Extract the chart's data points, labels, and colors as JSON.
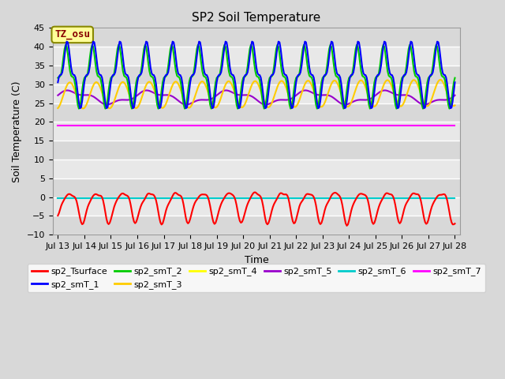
{
  "title": "SP2 Soil Temperature",
  "xlabel": "Time",
  "ylabel": "Soil Temperature (C)",
  "ylim": [
    -10,
    45
  ],
  "yticks": [
    -10,
    -5,
    0,
    5,
    10,
    15,
    20,
    25,
    30,
    35,
    40,
    45
  ],
  "colors": {
    "sp2_Tsurface": "#ff0000",
    "sp2_smT_1": "#0000ff",
    "sp2_smT_2": "#00cc00",
    "sp2_smT_3": "#ffcc00",
    "sp2_smT_4": "#ffff00",
    "sp2_smT_5": "#9900cc",
    "sp2_smT_6": "#00cccc",
    "sp2_smT_7": "#ff00ff"
  },
  "tz_label": "TZ_osu",
  "tz_color": "#880000",
  "tz_bg": "#ffff99",
  "background_color": "#d8d8d8",
  "plot_bg": "#e8e8e8"
}
